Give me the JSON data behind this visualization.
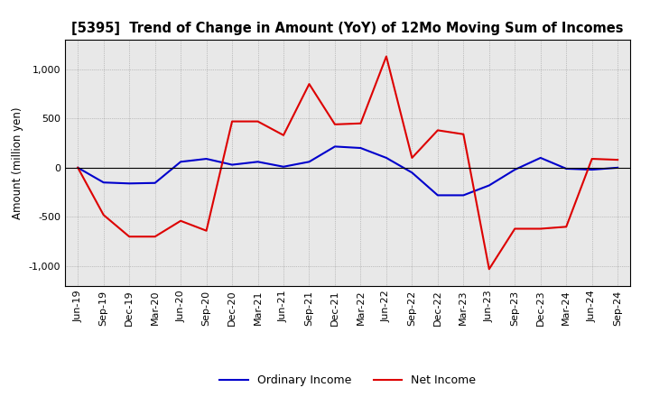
{
  "title": "[5395]  Trend of Change in Amount (YoY) of 12Mo Moving Sum of Incomes",
  "ylabel": "Amount (million yen)",
  "x_labels": [
    "Jun-19",
    "Sep-19",
    "Dec-19",
    "Mar-20",
    "Jun-20",
    "Sep-20",
    "Dec-20",
    "Mar-21",
    "Jun-21",
    "Sep-21",
    "Dec-21",
    "Mar-22",
    "Jun-22",
    "Sep-22",
    "Dec-22",
    "Mar-23",
    "Jun-23",
    "Sep-23",
    "Dec-23",
    "Mar-24",
    "Jun-24",
    "Sep-24"
  ],
  "ordinary_income": [
    0,
    -150,
    -160,
    -155,
    60,
    90,
    30,
    60,
    10,
    60,
    215,
    200,
    100,
    -50,
    -280,
    -280,
    -180,
    -20,
    100,
    -10,
    -20,
    0
  ],
  "net_income": [
    0,
    -480,
    -700,
    -700,
    -540,
    -640,
    470,
    470,
    330,
    850,
    440,
    450,
    1130,
    100,
    380,
    340,
    -1030,
    -620,
    -620,
    -600,
    90,
    80
  ],
  "ordinary_income_color": "#0000cc",
  "net_income_color": "#dd0000",
  "ylim": [
    -1200,
    1300
  ],
  "yticks": [
    -1000,
    -500,
    0,
    500,
    1000
  ],
  "background_color": "#ffffff",
  "plot_bg_color": "#e8e8e8",
  "grid_color": "#999999",
  "legend_labels": [
    "Ordinary Income",
    "Net Income"
  ],
  "title_fontsize": 10.5,
  "ylabel_fontsize": 8.5,
  "tick_fontsize": 8,
  "legend_fontsize": 9
}
